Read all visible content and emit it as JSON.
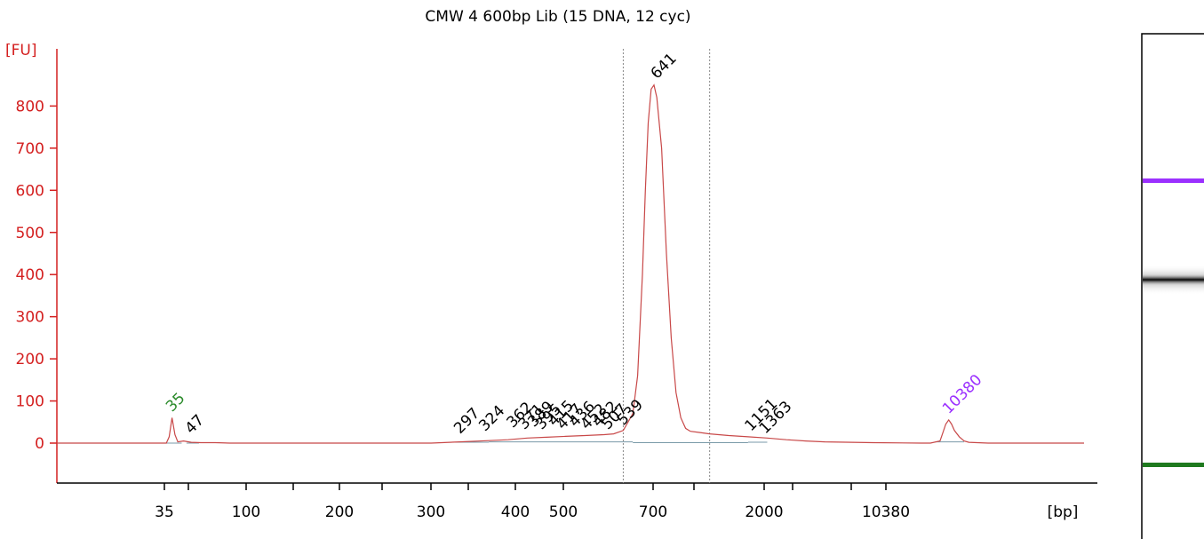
{
  "chart_data": {
    "type": "line",
    "title": "CMW 4 600bp Lib (15 DNA, 12 cyc)",
    "ylabel": "[FU]",
    "xlabel": "[bp]",
    "ylim": [
      -100,
      900
    ],
    "y_ticks": [
      0,
      100,
      200,
      300,
      400,
      500,
      600,
      700,
      800
    ],
    "x_tick_labels": [
      "35",
      "100",
      "200",
      "300",
      "400",
      "500",
      "700",
      "2000",
      "10380"
    ],
    "series": [
      {
        "x": [
          0,
          20,
          60,
          100,
          114,
          117,
          120,
          123,
          126,
          132,
          140,
          150,
          165,
          180,
          200,
          300,
          390,
          420,
          450,
          470,
          490,
          510,
          530,
          550,
          570,
          580,
          590,
          600,
          605,
          610,
          613,
          616,
          619,
          622,
          625,
          630,
          635,
          640,
          645,
          650,
          655,
          660,
          670,
          680,
          700,
          720,
          740,
          760,
          780,
          800,
          850,
          900,
          910,
          920,
          923,
          926,
          929,
          932,
          935,
          940,
          945,
          950,
          970,
          1000,
          1030,
          1070
        ],
        "y": [
          0,
          0,
          0,
          0,
          0,
          15,
          60,
          20,
          3,
          5,
          2,
          1,
          1,
          0,
          0,
          0,
          0,
          3,
          6,
          8,
          12,
          14,
          16,
          18,
          20,
          22,
          30,
          70,
          160,
          400,
          600,
          760,
          840,
          850,
          820,
          700,
          450,
          250,
          120,
          60,
          35,
          28,
          25,
          22,
          18,
          15,
          12,
          8,
          5,
          3,
          1,
          0,
          0,
          5,
          25,
          45,
          55,
          45,
          30,
          15,
          5,
          2,
          0,
          0,
          0,
          0
        ]
      }
    ],
    "peak_labels": [
      {
        "label": "35",
        "x": 120,
        "y": 60,
        "color": "#2a8a2a"
      },
      {
        "label": "47",
        "x": 140,
        "y": 8,
        "color": "#000000"
      },
      {
        "label": "297",
        "x": 420,
        "y": 8,
        "color": "#000000"
      },
      {
        "label": "324",
        "x": 446,
        "y": 14,
        "color": "#000000"
      },
      {
        "label": "362",
        "x": 475,
        "y": 22,
        "color": "#000000"
      },
      {
        "label": "371",
        "x": 487,
        "y": 18,
        "color": "#000000"
      },
      {
        "label": "389",
        "x": 497,
        "y": 24,
        "color": "#000000"
      },
      {
        "label": "395",
        "x": 505,
        "y": 18,
        "color": "#000000"
      },
      {
        "label": "415",
        "x": 518,
        "y": 26,
        "color": "#000000"
      },
      {
        "label": "417",
        "x": 527,
        "y": 18,
        "color": "#000000"
      },
      {
        "label": "436",
        "x": 540,
        "y": 24,
        "color": "#000000"
      },
      {
        "label": "452",
        "x": 552,
        "y": 18,
        "color": "#000000"
      },
      {
        "label": "482",
        "x": 564,
        "y": 24,
        "color": "#000000"
      },
      {
        "label": "507",
        "x": 574,
        "y": 18,
        "color": "#000000"
      },
      {
        "label": "539",
        "x": 590,
        "y": 28,
        "color": "#000000"
      },
      {
        "label": "641",
        "x": 625,
        "y": 850,
        "color": "#000000"
      },
      {
        "label": "1151",
        "x": 723,
        "y": 14,
        "color": "#000000"
      },
      {
        "label": "1363",
        "x": 738,
        "y": 8,
        "color": "#000000"
      },
      {
        "label": "10380",
        "x": 929,
        "y": 55,
        "color": "#9b30ff"
      }
    ],
    "vertical_markers_x": [
      590,
      680
    ],
    "grid": false
  },
  "gel_lane": {
    "upper_marker_color": "#9b30ff",
    "lower_marker_color": "#1f7a1f",
    "band_color": "#000000"
  },
  "colors": {
    "axis": "#d42020",
    "trace": "#c84848",
    "text": "#000000"
  }
}
